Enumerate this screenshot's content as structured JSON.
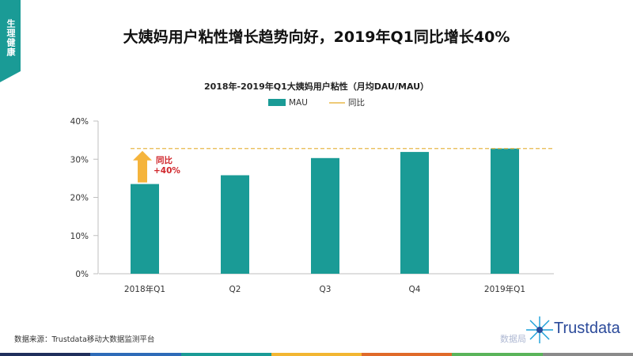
{
  "tab": {
    "label": "生理健康",
    "color": "#1a9b96"
  },
  "headline": "大姨妈用户粘性增长趋势向好，2019年Q1同比增长40%",
  "source": "数据来源：Trustdata移动大数据监测平台",
  "logo": {
    "name": "Trustdata",
    "watermark": "数据局"
  },
  "footer_colors": [
    "#1f2f5c",
    "#2e6bb8",
    "#1a9b96",
    "#f2b632",
    "#e06a2a",
    "#5ab45a",
    "#8a8a8a"
  ],
  "chart_data": {
    "type": "bar",
    "title": "2018年-2019年Q1大姨妈用户粘性（月均DAU/MAU）",
    "categories": [
      "2018年Q1",
      "Q2",
      "Q3",
      "Q4",
      "2019年Q1"
    ],
    "series": [
      {
        "name": "MAU",
        "color": "#1a9b96",
        "values": [
          23.5,
          25.8,
          30.3,
          31.9,
          32.8
        ]
      }
    ],
    "reference_line": {
      "name": "同比",
      "value": 32.8,
      "color": "#e8b84a",
      "style": "dashed"
    },
    "annotation": {
      "line1": "同比",
      "line2": "+40%",
      "color": "#d0262b",
      "arrow_color": "#f5b43c"
    },
    "ylim": [
      0,
      40
    ],
    "yticks": [
      0,
      10,
      20,
      30,
      40
    ],
    "ytick_suffix": "%",
    "grid": false,
    "legend_position": "top-center"
  }
}
